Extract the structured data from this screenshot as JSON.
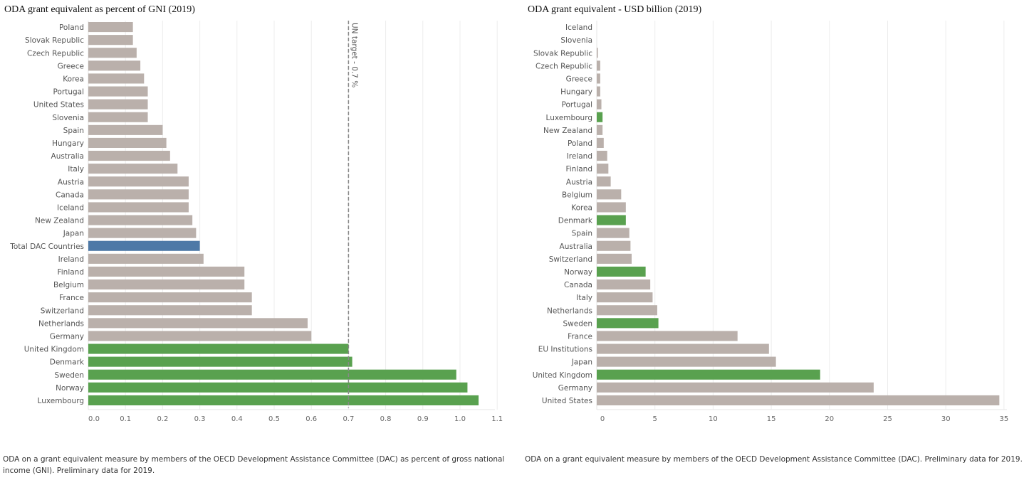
{
  "colors": {
    "default": "#bab0ab",
    "highlight": "#59a14f",
    "total": "#4e79a7",
    "grid": "#ececec",
    "target": "#888888"
  },
  "chart_data": [
    {
      "type": "bar",
      "orientation": "horizontal",
      "title": "ODA grant equivalent as percent of GNI (2019)",
      "xlim": [
        0,
        1.1
      ],
      "ticks": [
        "0.0",
        "0.1",
        "0.2",
        "0.3",
        "0.4",
        "0.5",
        "0.6",
        "0.7",
        "0.8",
        "0.9",
        "1.0",
        "1.1"
      ],
      "tick_values": [
        0,
        0.1,
        0.2,
        0.3,
        0.4,
        0.5,
        0.6,
        0.7,
        0.8,
        0.9,
        1.0,
        1.1
      ],
      "grid": true,
      "reference_line": {
        "value": 0.7,
        "label": "UN target - 0.7 %"
      },
      "categories": [
        "Poland",
        "Slovak Republic",
        "Czech Republic",
        "Greece",
        "Korea",
        "Portugal",
        "United States",
        "Slovenia",
        "Spain",
        "Hungary",
        "Australia",
        "Italy",
        "Austria",
        "Canada",
        "Iceland",
        "New Zealand",
        "Japan",
        "Total DAC Countries",
        "Ireland",
        "Finland",
        "Belgium",
        "France",
        "Switzerland",
        "Netherlands",
        "Germany",
        "United Kingdom",
        "Denmark",
        "Sweden",
        "Norway",
        "Luxembourg"
      ],
      "values": [
        0.12,
        0.12,
        0.13,
        0.14,
        0.15,
        0.16,
        0.16,
        0.16,
        0.2,
        0.21,
        0.22,
        0.24,
        0.27,
        0.27,
        0.27,
        0.28,
        0.29,
        0.3,
        0.31,
        0.42,
        0.42,
        0.44,
        0.44,
        0.59,
        0.6,
        0.7,
        0.71,
        0.99,
        1.02,
        1.05
      ],
      "groups": [
        "default",
        "default",
        "default",
        "default",
        "default",
        "default",
        "default",
        "default",
        "default",
        "default",
        "default",
        "default",
        "default",
        "default",
        "default",
        "default",
        "default",
        "total",
        "default",
        "default",
        "default",
        "default",
        "default",
        "default",
        "default",
        "highlight",
        "highlight",
        "highlight",
        "highlight",
        "highlight"
      ],
      "footnote": "ODA on a grant equivalent measure by members of the OECD Development Assistance Committee (DAC) as percent of gross national income (GNI).  Preliminary data for 2019."
    },
    {
      "type": "bar",
      "orientation": "horizontal",
      "title": "ODA grant equivalent - USD billion (2019)",
      "xlim": [
        0,
        35.5
      ],
      "ticks": [
        "0",
        "5",
        "10",
        "15",
        "20",
        "25",
        "30",
        "35"
      ],
      "tick_values": [
        0,
        5,
        10,
        15,
        20,
        25,
        30,
        35
      ],
      "grid": true,
      "categories": [
        "Iceland",
        "Slovenia",
        "Slovak Republic",
        "Czech Republic",
        "Greece",
        "Hungary",
        "Portugal",
        "Luxembourg",
        "New Zealand",
        "Poland",
        "Ireland",
        "Finland",
        "Austria",
        "Belgium",
        "Korea",
        "Denmark",
        "Spain",
        "Australia",
        "Switzerland",
        "Norway",
        "Canada",
        "Italy",
        "Netherlands",
        "Sweden",
        "France",
        "EU Institutions",
        "Japan",
        "United Kingdom",
        "Germany",
        "United States"
      ],
      "values": [
        0.0,
        0.0,
        0.1,
        0.3,
        0.3,
        0.3,
        0.4,
        0.5,
        0.5,
        0.6,
        0.9,
        1.0,
        1.2,
        2.1,
        2.5,
        2.5,
        2.8,
        2.9,
        3.0,
        4.2,
        4.6,
        4.8,
        5.2,
        5.3,
        12.1,
        14.8,
        15.4,
        19.2,
        23.8,
        34.6
      ],
      "groups": [
        "default",
        "default",
        "default",
        "default",
        "default",
        "default",
        "default",
        "highlight",
        "default",
        "default",
        "default",
        "default",
        "default",
        "default",
        "default",
        "highlight",
        "default",
        "default",
        "default",
        "highlight",
        "default",
        "default",
        "default",
        "highlight",
        "default",
        "default",
        "default",
        "highlight",
        "default",
        "default"
      ],
      "footnote": "ODA on a grant equivalent measure by members of the OECD Development Assistance Committee (DAC).  Preliminary data for 2019."
    }
  ]
}
